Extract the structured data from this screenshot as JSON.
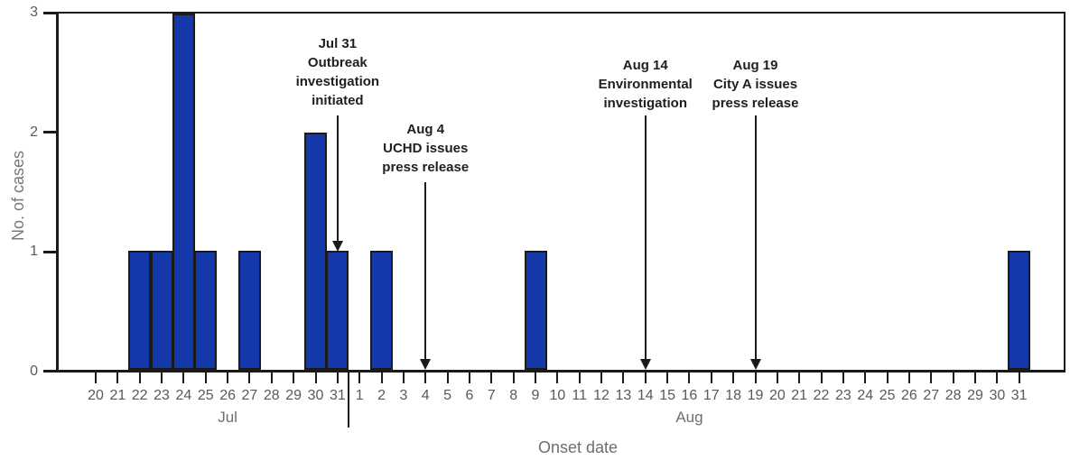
{
  "chart_data": {
    "type": "bar",
    "ylabel": "No. of cases",
    "xlabel": "Onset date",
    "ylim": [
      0,
      3
    ],
    "yticks": [
      0,
      1,
      2,
      3
    ],
    "grid": false,
    "x_months": [
      {
        "label": "Jul",
        "start_day": 20,
        "end_day": 31
      },
      {
        "label": "Aug",
        "start_day": 1,
        "end_day": 31
      }
    ],
    "cases": [
      {
        "month": "Jul",
        "day": 22,
        "count": 1
      },
      {
        "month": "Jul",
        "day": 23,
        "count": 1
      },
      {
        "month": "Jul",
        "day": 24,
        "count": 3
      },
      {
        "month": "Jul",
        "day": 25,
        "count": 1
      },
      {
        "month": "Jul",
        "day": 27,
        "count": 1
      },
      {
        "month": "Jul",
        "day": 30,
        "count": 2
      },
      {
        "month": "Jul",
        "day": 31,
        "count": 1
      },
      {
        "month": "Aug",
        "day": 2,
        "count": 1
      },
      {
        "month": "Aug",
        "day": 9,
        "count": 1
      },
      {
        "month": "Aug",
        "day": 31,
        "count": 1
      }
    ],
    "annotations": [
      {
        "lines": [
          "Jul 31",
          "Outbreak",
          "investigation",
          "initiated"
        ],
        "month": "Jul",
        "day": 31,
        "arrow_points_to": "bar-top"
      },
      {
        "lines": [
          "Aug 4",
          "UCHD issues",
          "press release"
        ],
        "month": "Aug",
        "day": 4,
        "arrow_points_to": "axis"
      },
      {
        "lines": [
          "Aug 14",
          "Environmental",
          "investigation"
        ],
        "month": "Aug",
        "day": 14,
        "arrow_points_to": "axis"
      },
      {
        "lines": [
          "Aug 19",
          "City A issues",
          "press release"
        ],
        "month": "Aug",
        "day": 19,
        "arrow_points_to": "axis"
      }
    ],
    "colors": {
      "bar_fill": "#1539AA",
      "bar_border": "#1A1A1A",
      "axis": "#1A1A1A",
      "tick_label": "#58595B",
      "axis_title": "#6D6E71",
      "annotation_text": "#1F1F1F"
    }
  }
}
